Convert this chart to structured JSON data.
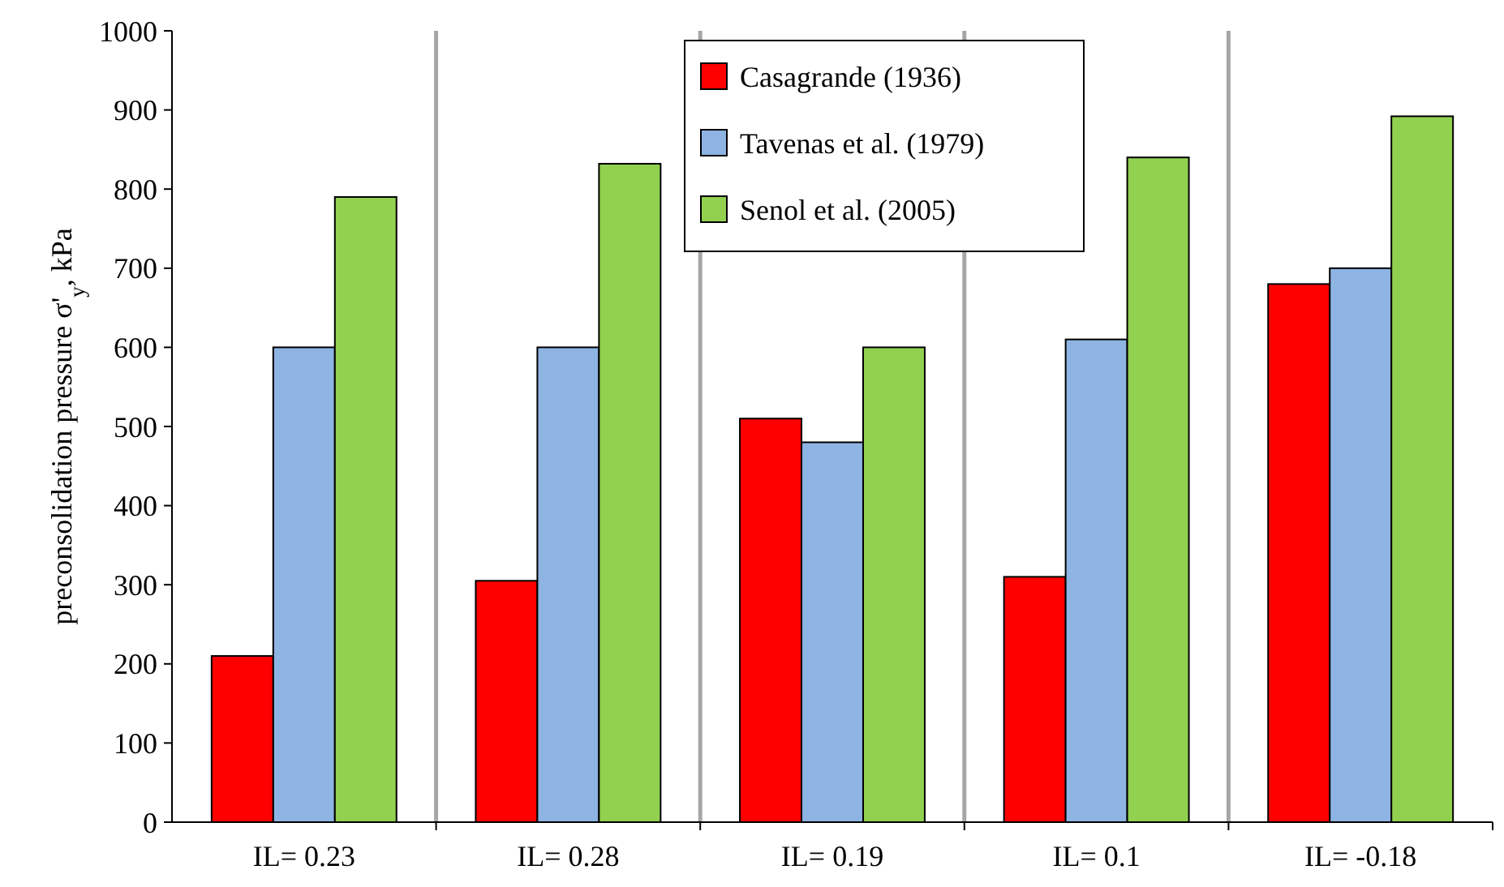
{
  "chart_data": {
    "type": "bar",
    "ylabel": "preconsolidation pressure σ'$_{y}$, kPa",
    "categories": [
      "IL= 0.23",
      "IL= 0.28",
      "IL= 0.19",
      "IL= 0.1",
      "IL= -0.18"
    ],
    "series": [
      {
        "name": "Casagrande (1936)",
        "color": "#ff0000",
        "values": [
          210,
          305,
          510,
          310,
          680
        ]
      },
      {
        "name": "Tavenas et al. (1979)",
        "color": "#8eb4e3",
        "values": [
          600,
          600,
          480,
          610,
          700
        ]
      },
      {
        "name": "Senol et al. (2005)",
        "color": "#92d050",
        "values": [
          790,
          832,
          600,
          840,
          892
        ]
      }
    ],
    "ylim": [
      0,
      1000
    ],
    "yticks": [
      0,
      100,
      200,
      300,
      400,
      500,
      600,
      700,
      800,
      900,
      1000
    ],
    "grid": "x",
    "legend": "top"
  }
}
